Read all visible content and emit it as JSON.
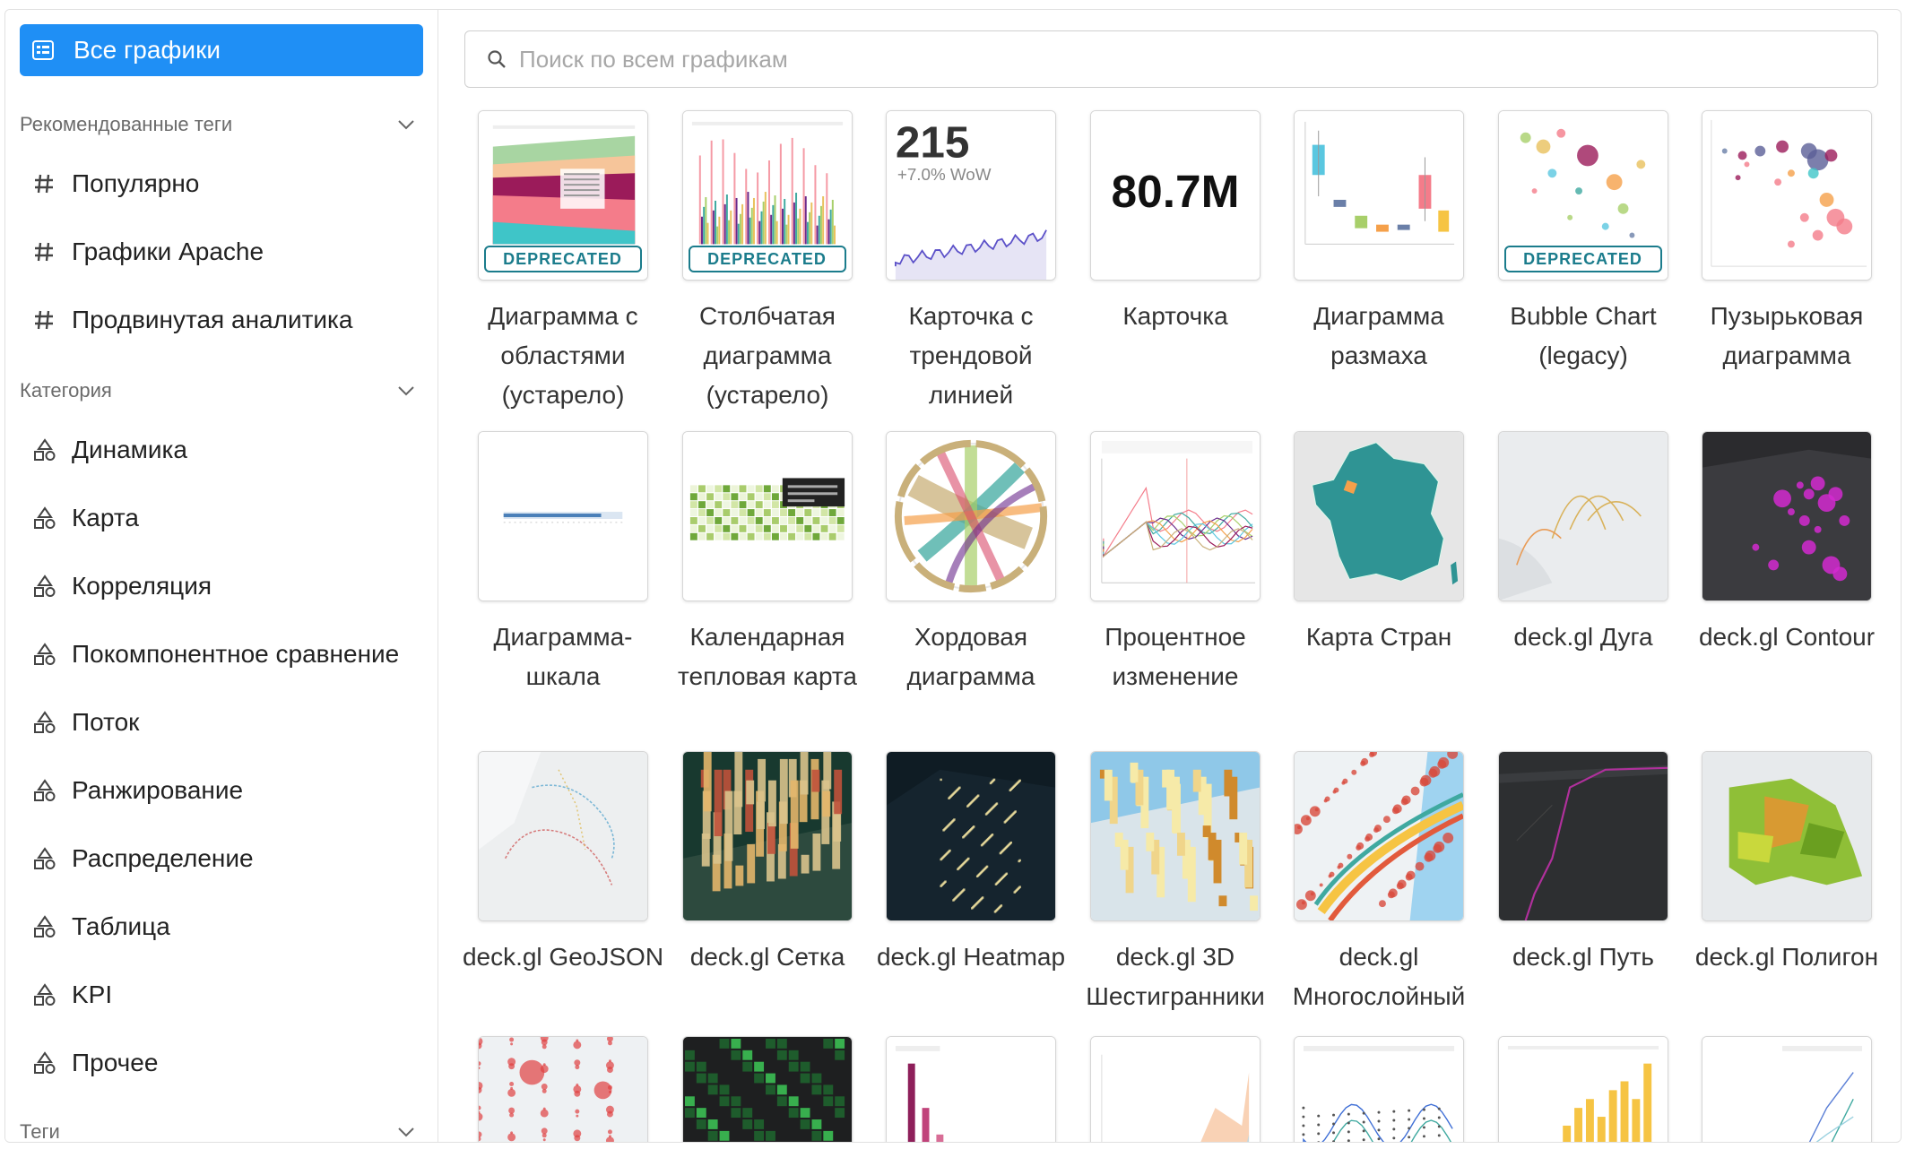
{
  "sidebar": {
    "all_charts": {
      "label": "Все графики",
      "icon": "list-icon"
    },
    "recommended": {
      "title": "Рекомендованные теги",
      "items": [
        {
          "label": "Популярно",
          "icon": "hash-icon"
        },
        {
          "label": "Графики Apache",
          "icon": "hash-icon"
        },
        {
          "label": "Продвинутая аналитика",
          "icon": "hash-icon"
        }
      ]
    },
    "category": {
      "title": "Категория",
      "items": [
        {
          "label": "Динамика",
          "icon": "shapes-icon"
        },
        {
          "label": "Карта",
          "icon": "shapes-icon"
        },
        {
          "label": "Корреляция",
          "icon": "shapes-icon"
        },
        {
          "label": "Покомпонентное сравнение",
          "icon": "shapes-icon"
        },
        {
          "label": "Поток",
          "icon": "shapes-icon"
        },
        {
          "label": "Ранжирование",
          "icon": "shapes-icon"
        },
        {
          "label": "Распределение",
          "icon": "shapes-icon"
        },
        {
          "label": "Таблица",
          "icon": "shapes-icon"
        },
        {
          "label": "KPI",
          "icon": "shapes-icon"
        },
        {
          "label": "Прочее",
          "icon": "shapes-icon"
        }
      ]
    },
    "tags": {
      "title": "Теги"
    }
  },
  "search": {
    "placeholder": "Поиск по всем графикам"
  },
  "deprecated_label": "DEPRECATED",
  "charts": [
    {
      "name": "Диаграмма с областями (устарело)",
      "deprecated": true,
      "thumb": "area"
    },
    {
      "name": "Столбчатая диаграмма (устарело)",
      "deprecated": true,
      "thumb": "bars"
    },
    {
      "name": "Карточка с трендовой линией",
      "deprecated": false,
      "thumb": "bignum-trend",
      "big_value": "215",
      "sub_value": "+7.0% WoW"
    },
    {
      "name": "Карточка",
      "deprecated": false,
      "thumb": "bignum",
      "big_value": "80.7M"
    },
    {
      "name": "Диаграмма размаха",
      "deprecated": false,
      "thumb": "box"
    },
    {
      "name": "Bubble Chart (legacy)",
      "deprecated": true,
      "thumb": "bubble-legacy"
    },
    {
      "name": "Пузырьковая диаграмма",
      "deprecated": false,
      "thumb": "bubble"
    },
    {
      "name": "Диаграмма-шкала",
      "deprecated": false,
      "thumb": "bullet"
    },
    {
      "name": "Календарная тепловая карта",
      "deprecated": false,
      "thumb": "calendar"
    },
    {
      "name": "Хордовая диаграмма",
      "deprecated": false,
      "thumb": "chord"
    },
    {
      "name": "Процентное изменение",
      "deprecated": false,
      "thumb": "compare"
    },
    {
      "name": "Карта Стран",
      "deprecated": false,
      "thumb": "country"
    },
    {
      "name": "deck.gl Дуга",
      "deprecated": false,
      "thumb": "arc"
    },
    {
      "name": "deck.gl Contour",
      "deprecated": false,
      "thumb": "contour"
    },
    {
      "name": "deck.gl GeoJSON",
      "deprecated": false,
      "thumb": "geojson"
    },
    {
      "name": "deck.gl Сетка",
      "deprecated": false,
      "thumb": "grid3d"
    },
    {
      "name": "deck.gl Heatmap",
      "deprecated": false,
      "thumb": "heatmap"
    },
    {
      "name": "deck.gl 3D Шестигранники",
      "deprecated": false,
      "thumb": "hex"
    },
    {
      "name": "deck.gl Многослойный",
      "deprecated": false,
      "thumb": "multi"
    },
    {
      "name": "deck.gl Путь",
      "deprecated": false,
      "thumb": "path"
    },
    {
      "name": "deck.gl Полигон",
      "deprecated": false,
      "thumb": "polygon"
    },
    {
      "name": "",
      "deprecated": false,
      "thumb": "scatter-map"
    },
    {
      "name": "",
      "deprecated": false,
      "thumb": "screengrid"
    },
    {
      "name": "",
      "deprecated": false,
      "thumb": "dist-bar"
    },
    {
      "name": "",
      "deprecated": false,
      "thumb": "area2"
    },
    {
      "name": "",
      "deprecated": false,
      "thumb": "band"
    },
    {
      "name": "",
      "deprecated": false,
      "thumb": "hist"
    },
    {
      "name": "",
      "deprecated": false,
      "thumb": "lines"
    }
  ]
}
